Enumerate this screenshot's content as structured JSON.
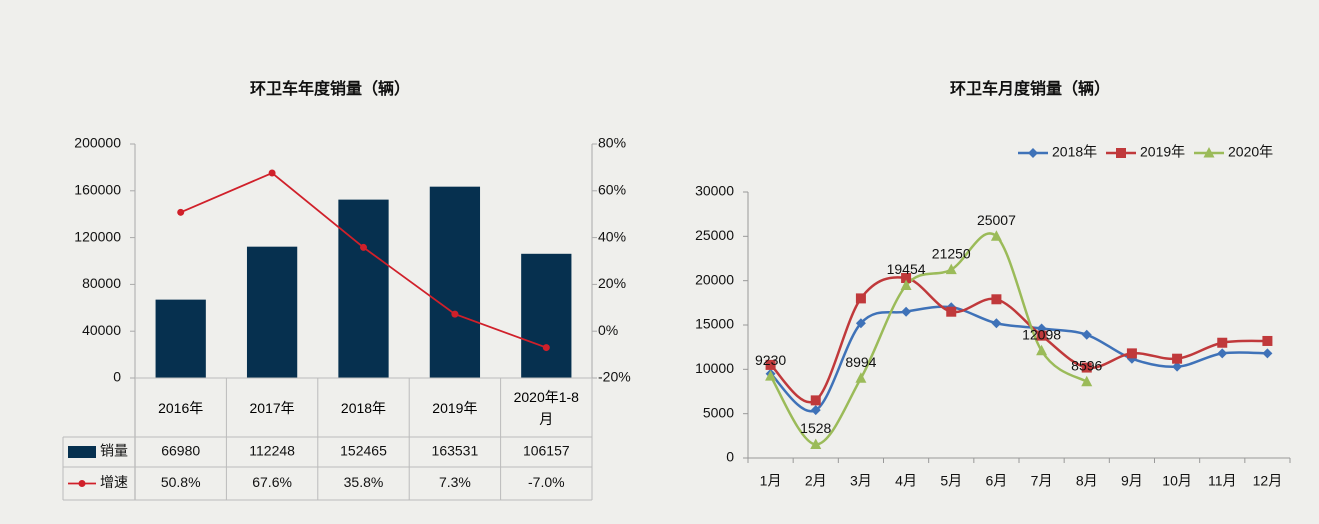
{
  "chart_data": [
    {
      "type": "bar",
      "title": "环卫车年度销量（辆）",
      "categories": [
        "2016年",
        "2017年",
        "2018年",
        "2019年",
        "2020年1-8月"
      ],
      "series": [
        {
          "name": "销量",
          "color": "#06304f",
          "values": [
            66980,
            112248,
            152465,
            163531,
            106157
          ]
        },
        {
          "name": "增速",
          "color": "#d0202a",
          "axis": "y2",
          "values": [
            50.8,
            67.6,
            35.8,
            7.3,
            -7.0
          ],
          "value_labels": [
            "50.8%",
            "67.6%",
            "35.8%",
            "7.3%",
            "-7.0%"
          ]
        }
      ],
      "ylim": [
        0,
        200000
      ],
      "yticks": [
        0,
        40000,
        80000,
        120000,
        160000,
        200000
      ],
      "y2lim": [
        -20,
        80
      ],
      "y2ticks": [
        {
          "value": -20,
          "label": "-20%"
        },
        {
          "value": 0,
          "label": "0%"
        },
        {
          "value": 20,
          "label": "20%"
        },
        {
          "value": 40,
          "label": "40%"
        },
        {
          "value": 60,
          "label": "60%"
        },
        {
          "value": 80,
          "label": "80%"
        }
      ],
      "grid": false,
      "data_table": true
    },
    {
      "type": "line",
      "title": "环卫车月度销量（辆）",
      "categories": [
        "1月",
        "2月",
        "3月",
        "4月",
        "5月",
        "6月",
        "7月",
        "8月",
        "9月",
        "10月",
        "11月",
        "12月"
      ],
      "series": [
        {
          "name": "2018年",
          "color": "#3f72b8",
          "marker": "diamond",
          "values": [
            9500,
            5400,
            15200,
            16500,
            17000,
            15200,
            14600,
            13900,
            11200,
            10300,
            11800,
            11800
          ]
        },
        {
          "name": "2019年",
          "color": "#c0393b",
          "marker": "square",
          "values": [
            10500,
            6500,
            18000,
            20300,
            16500,
            17900,
            13800,
            10200,
            11800,
            11200,
            13000,
            13200
          ]
        },
        {
          "name": "2020年",
          "color": "#9bbb59",
          "marker": "triangle",
          "data_labels": true,
          "values": [
            9230,
            1528,
            8994,
            19454,
            21250,
            25007,
            12098,
            8596,
            null,
            null,
            null,
            null
          ]
        }
      ],
      "ylim": [
        0,
        30000
      ],
      "yticks": [
        0,
        5000,
        10000,
        15000,
        20000,
        25000,
        30000
      ],
      "grid": false,
      "legend": "top-right",
      "smooth": true
    }
  ]
}
